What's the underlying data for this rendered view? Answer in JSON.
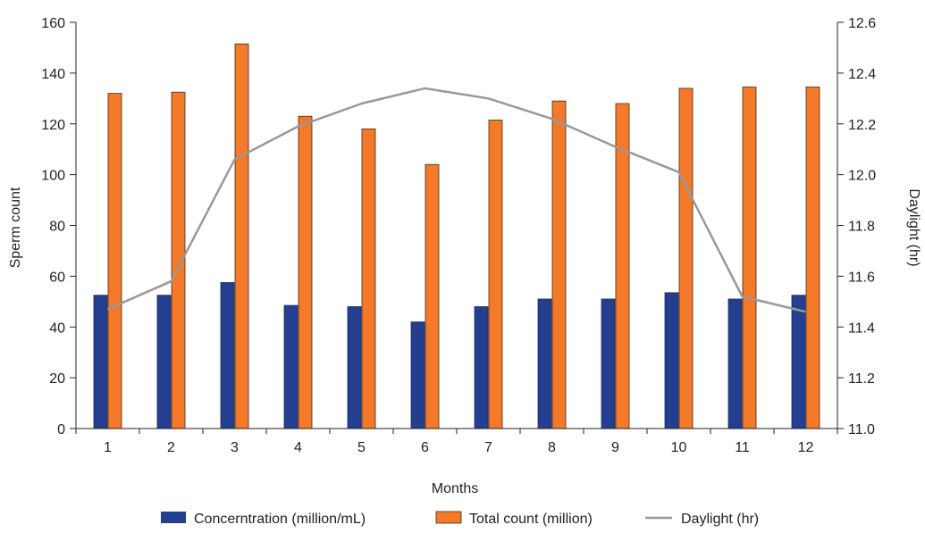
{
  "chart_data": {
    "type": "bar",
    "categories": [
      "1",
      "2",
      "3",
      "4",
      "5",
      "6",
      "7",
      "8",
      "9",
      "10",
      "11",
      "12"
    ],
    "series": [
      {
        "name": "Concerntration (million/mL)",
        "kind": "bar",
        "axis": "left",
        "color": "#243f8f",
        "values": [
          52.5,
          52.5,
          57.5,
          48.5,
          48.0,
          42.0,
          48.0,
          51.0,
          51.0,
          53.5,
          51.0,
          52.5
        ]
      },
      {
        "name": "Total count (million)",
        "kind": "bar",
        "axis": "left",
        "color": "#f47a2a",
        "values": [
          132,
          132.5,
          151.5,
          123,
          118,
          104,
          121.5,
          129,
          128,
          134,
          134.5,
          134.5
        ]
      },
      {
        "name": "Daylight (hr)",
        "kind": "line",
        "axis": "right",
        "color": "#999999",
        "values": [
          11.47,
          11.58,
          12.06,
          12.19,
          12.28,
          12.34,
          12.3,
          12.22,
          12.11,
          12.01,
          11.52,
          11.46
        ]
      }
    ],
    "xlabel": "Months",
    "ylabel": "Sperm count",
    "y2label": "Daylight (hr)",
    "ylim": [
      0,
      160
    ],
    "y2lim": [
      11.0,
      12.6
    ],
    "yticks": [
      "0",
      "20",
      "40",
      "60",
      "80",
      "100",
      "120",
      "140",
      "160"
    ],
    "y2ticks": [
      "11.0",
      "11.2",
      "11.4",
      "11.6",
      "11.8",
      "12.0",
      "12.2",
      "12.4",
      "12.6"
    ],
    "grid": false,
    "legend_position": "bottom"
  }
}
